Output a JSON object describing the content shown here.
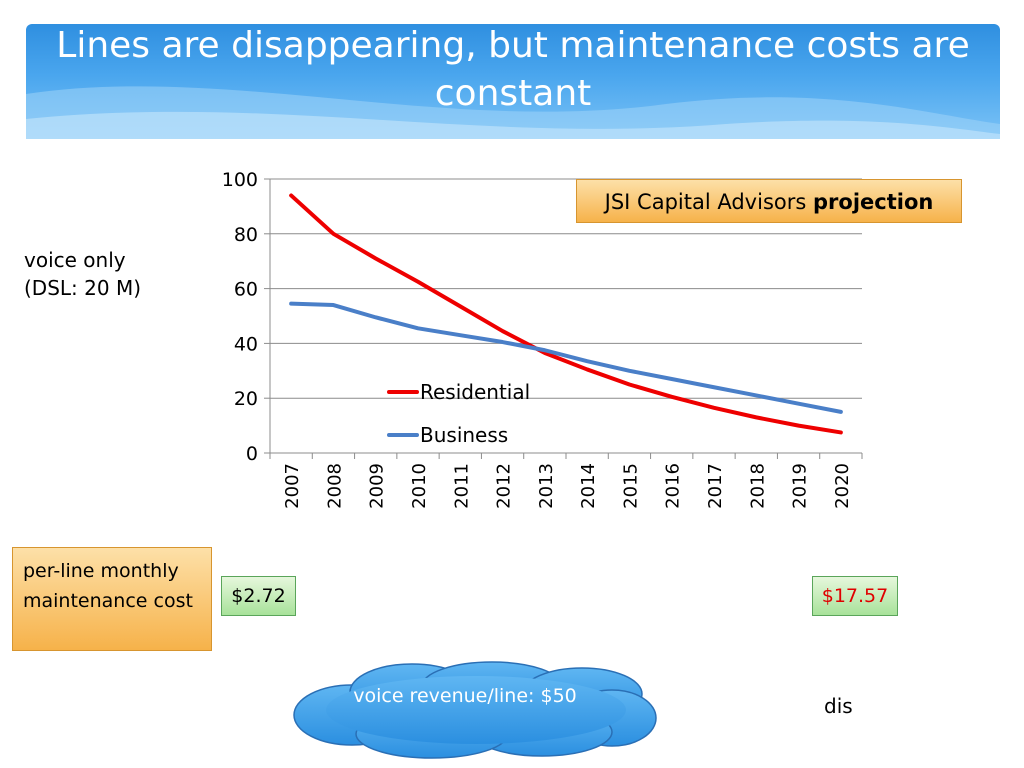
{
  "slide": {
    "title": "Lines are disappearing, but maintenance costs are constant",
    "side_label": "voice only (DSL: 20 M)",
    "projection_box": {
      "prefix": "JSI Capital Advisors ",
      "bold": "projection"
    },
    "cost_box": "per-line monthly maintenance cost",
    "cost_start": "$2.72",
    "cost_end": "$17.57",
    "cloud_text": "voice revenue/line: $50",
    "dis_text": "dis"
  },
  "colors": {
    "header": "#3d9ae8",
    "residential": "#ee0000",
    "business": "#4a7fc8",
    "orange_box": "#f6b24a",
    "green_box": "#a8e29a",
    "cloud": "#3aa0ec"
  },
  "chart_data": {
    "type": "line",
    "categories": [
      "2007",
      "2008",
      "2009",
      "2010",
      "2011",
      "2012",
      "2013",
      "2014",
      "2015",
      "2016",
      "2017",
      "2018",
      "2019",
      "2020"
    ],
    "series": [
      {
        "name": "Residential",
        "values": [
          94,
          80,
          71,
          62.5,
          53.5,
          44.5,
          36.5,
          30.5,
          25,
          20.5,
          16.5,
          13,
          10,
          7.5
        ]
      },
      {
        "name": "Business",
        "values": [
          54.5,
          54,
          49.5,
          45.5,
          43,
          40.5,
          37.5,
          33.5,
          30,
          27,
          24,
          21,
          18,
          15
        ]
      }
    ],
    "yticks": [
      0,
      20,
      40,
      60,
      80,
      100
    ],
    "ylim": [
      0,
      100
    ],
    "xlabel": "",
    "ylabel": "",
    "legend_position": "center",
    "grid": true
  }
}
